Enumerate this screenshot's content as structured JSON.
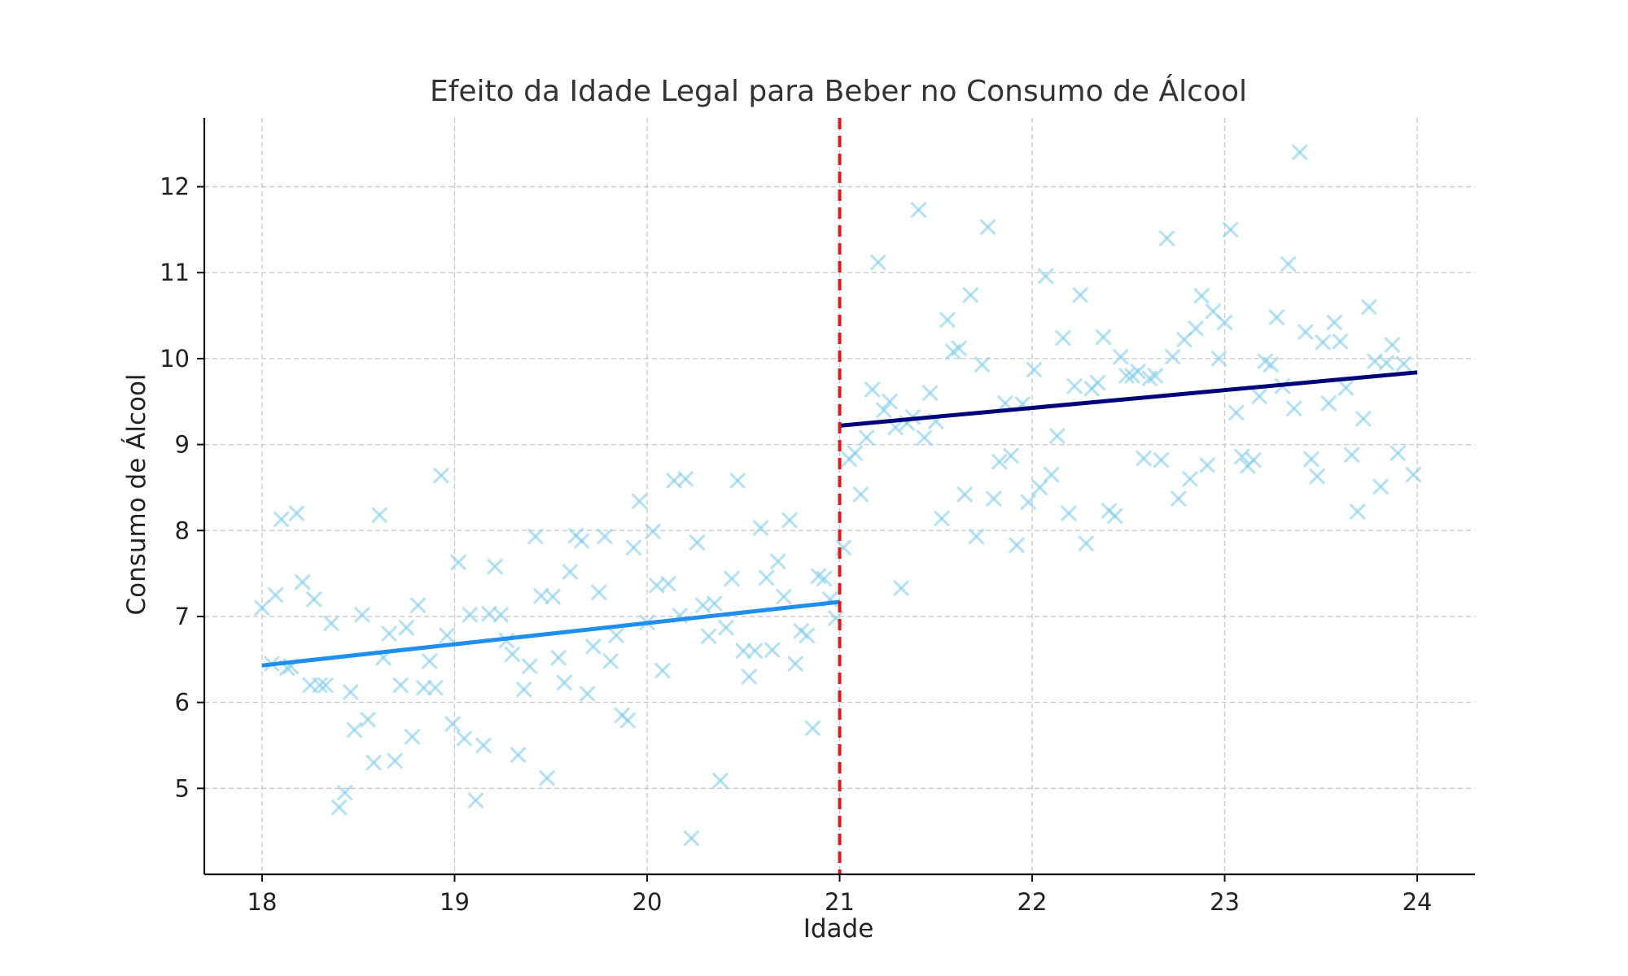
{
  "chart_data": {
    "type": "scatter",
    "title": "Efeito da Idade Legal para Beber no Consumo de Álcool",
    "xlabel": "Idade",
    "ylabel": "Consumo de Álcool",
    "xlim": [
      17.7,
      24.3
    ],
    "ylim": [
      4.0,
      12.8
    ],
    "x_ticks": [
      18,
      19,
      20,
      21,
      22,
      23,
      24
    ],
    "y_ticks": [
      5,
      6,
      7,
      8,
      9,
      10,
      11,
      12
    ],
    "grid": true,
    "cutoff": {
      "x": 21,
      "color": "#e31a1c",
      "style": "dashed"
    },
    "scatter_color": "#87ceeb",
    "series": [
      {
        "type": "scatter",
        "marker": "x",
        "points": [
          [
            18.0,
            7.1
          ],
          [
            18.05,
            6.45
          ],
          [
            18.07,
            7.25
          ],
          [
            18.1,
            8.13
          ],
          [
            18.13,
            6.4
          ],
          [
            18.15,
            6.42
          ],
          [
            18.18,
            8.2
          ],
          [
            18.21,
            7.4
          ],
          [
            18.25,
            6.2
          ],
          [
            18.27,
            7.2
          ],
          [
            18.3,
            6.2
          ],
          [
            18.33,
            6.2
          ],
          [
            18.36,
            6.92
          ],
          [
            18.4,
            4.78
          ],
          [
            18.43,
            4.95
          ],
          [
            18.46,
            6.12
          ],
          [
            18.48,
            5.68
          ],
          [
            18.52,
            7.02
          ],
          [
            18.55,
            5.8
          ],
          [
            18.58,
            5.3
          ],
          [
            18.61,
            8.18
          ],
          [
            18.63,
            6.52
          ],
          [
            18.66,
            6.8
          ],
          [
            18.69,
            5.32
          ],
          [
            18.72,
            6.2
          ],
          [
            18.75,
            6.87
          ],
          [
            18.78,
            5.6
          ],
          [
            18.81,
            7.13
          ],
          [
            18.84,
            6.17
          ],
          [
            18.87,
            6.48
          ],
          [
            18.9,
            6.17
          ],
          [
            18.93,
            8.64
          ],
          [
            18.96,
            6.78
          ],
          [
            18.99,
            5.75
          ],
          [
            19.02,
            7.63
          ],
          [
            19.05,
            5.58
          ],
          [
            19.08,
            7.02
          ],
          [
            19.11,
            4.86
          ],
          [
            19.15,
            5.5
          ],
          [
            19.18,
            7.03
          ],
          [
            19.21,
            7.58
          ],
          [
            19.24,
            7.02
          ],
          [
            19.27,
            6.72
          ],
          [
            19.3,
            6.56
          ],
          [
            19.33,
            5.39
          ],
          [
            19.36,
            6.15
          ],
          [
            19.39,
            6.42
          ],
          [
            19.42,
            7.93
          ],
          [
            19.45,
            7.24
          ],
          [
            19.48,
            5.12
          ],
          [
            19.51,
            7.23
          ],
          [
            19.54,
            6.52
          ],
          [
            19.57,
            6.23
          ],
          [
            19.6,
            7.52
          ],
          [
            19.63,
            7.94
          ],
          [
            19.66,
            7.88
          ],
          [
            19.69,
            6.1
          ],
          [
            19.72,
            6.65
          ],
          [
            19.75,
            7.28
          ],
          [
            19.78,
            7.93
          ],
          [
            19.81,
            6.48
          ],
          [
            19.84,
            6.78
          ],
          [
            19.87,
            5.85
          ],
          [
            19.9,
            5.79
          ],
          [
            19.93,
            7.8
          ],
          [
            19.96,
            8.34
          ],
          [
            20.0,
            6.93
          ],
          [
            20.03,
            7.99
          ],
          [
            20.05,
            7.36
          ],
          [
            20.08,
            6.37
          ],
          [
            20.11,
            7.38
          ],
          [
            20.14,
            8.58
          ],
          [
            20.17,
            7.01
          ],
          [
            20.2,
            8.6
          ],
          [
            20.23,
            4.42
          ],
          [
            20.26,
            7.86
          ],
          [
            20.29,
            7.13
          ],
          [
            20.32,
            6.77
          ],
          [
            20.35,
            7.15
          ],
          [
            20.38,
            5.09
          ],
          [
            20.41,
            6.87
          ],
          [
            20.44,
            7.44
          ],
          [
            20.47,
            8.58
          ],
          [
            20.5,
            6.6
          ],
          [
            20.53,
            6.3
          ],
          [
            20.56,
            6.6
          ],
          [
            20.59,
            8.03
          ],
          [
            20.62,
            7.45
          ],
          [
            20.65,
            6.61
          ],
          [
            20.68,
            7.64
          ],
          [
            20.71,
            7.23
          ],
          [
            20.74,
            8.12
          ],
          [
            20.77,
            6.45
          ],
          [
            20.8,
            6.83
          ],
          [
            20.83,
            6.78
          ],
          [
            20.86,
            5.7
          ],
          [
            20.89,
            7.47
          ],
          [
            20.92,
            7.44
          ],
          [
            20.95,
            7.2
          ],
          [
            20.98,
            6.98
          ],
          [
            21.02,
            7.8
          ],
          [
            21.05,
            8.83
          ],
          [
            21.08,
            8.9
          ],
          [
            21.11,
            8.42
          ],
          [
            21.14,
            9.08
          ],
          [
            21.17,
            9.64
          ],
          [
            21.2,
            11.12
          ],
          [
            21.23,
            9.4
          ],
          [
            21.26,
            9.5
          ],
          [
            21.29,
            9.2
          ],
          [
            21.32,
            7.33
          ],
          [
            21.35,
            9.25
          ],
          [
            21.38,
            9.32
          ],
          [
            21.41,
            11.73
          ],
          [
            21.44,
            9.08
          ],
          [
            21.47,
            9.6
          ],
          [
            21.5,
            9.27
          ],
          [
            21.53,
            8.14
          ],
          [
            21.56,
            10.45
          ],
          [
            21.59,
            10.08
          ],
          [
            21.62,
            10.12
          ],
          [
            21.65,
            8.42
          ],
          [
            21.68,
            10.74
          ],
          [
            21.71,
            7.93
          ],
          [
            21.74,
            9.93
          ],
          [
            21.77,
            11.53
          ],
          [
            21.8,
            8.37
          ],
          [
            21.83,
            8.8
          ],
          [
            21.86,
            9.48
          ],
          [
            21.89,
            8.87
          ],
          [
            21.92,
            7.83
          ],
          [
            21.95,
            9.47
          ],
          [
            21.98,
            8.33
          ],
          [
            22.01,
            9.87
          ],
          [
            22.04,
            8.5
          ],
          [
            22.07,
            10.96
          ],
          [
            22.1,
            8.65
          ],
          [
            22.13,
            9.1
          ],
          [
            22.16,
            10.24
          ],
          [
            22.19,
            8.2
          ],
          [
            22.22,
            9.68
          ],
          [
            22.25,
            10.74
          ],
          [
            22.28,
            7.85
          ],
          [
            22.31,
            9.65
          ],
          [
            22.34,
            9.72
          ],
          [
            22.37,
            10.25
          ],
          [
            22.4,
            8.23
          ],
          [
            22.43,
            8.17
          ],
          [
            22.46,
            10.02
          ],
          [
            22.49,
            9.8
          ],
          [
            22.52,
            9.8
          ],
          [
            22.55,
            9.85
          ],
          [
            22.58,
            8.84
          ],
          [
            22.61,
            9.77
          ],
          [
            22.64,
            9.8
          ],
          [
            22.67,
            8.82
          ],
          [
            22.7,
            11.4
          ],
          [
            22.73,
            10.02
          ],
          [
            22.76,
            8.37
          ],
          [
            22.79,
            10.22
          ],
          [
            22.82,
            8.6
          ],
          [
            22.85,
            10.35
          ],
          [
            22.88,
            10.73
          ],
          [
            22.91,
            8.76
          ],
          [
            22.94,
            10.55
          ],
          [
            22.97,
            10.0
          ],
          [
            23.0,
            10.42
          ],
          [
            23.03,
            11.5
          ],
          [
            23.06,
            9.37
          ],
          [
            23.09,
            8.86
          ],
          [
            23.12,
            8.75
          ],
          [
            23.15,
            8.82
          ],
          [
            23.18,
            9.56
          ],
          [
            23.21,
            9.97
          ],
          [
            23.24,
            9.93
          ],
          [
            23.27,
            10.48
          ],
          [
            23.3,
            9.68
          ],
          [
            23.33,
            11.1
          ],
          [
            23.36,
            9.42
          ],
          [
            23.39,
            12.4
          ],
          [
            23.42,
            10.31
          ],
          [
            23.45,
            8.83
          ],
          [
            23.48,
            8.63
          ],
          [
            23.51,
            10.19
          ],
          [
            23.54,
            9.48
          ],
          [
            23.57,
            10.42
          ],
          [
            23.6,
            10.2
          ],
          [
            23.63,
            9.66
          ],
          [
            23.66,
            8.88
          ],
          [
            23.69,
            8.22
          ],
          [
            23.72,
            9.3
          ],
          [
            23.75,
            10.6
          ],
          [
            23.78,
            9.97
          ],
          [
            23.81,
            8.51
          ],
          [
            23.84,
            9.95
          ],
          [
            23.87,
            10.16
          ],
          [
            23.9,
            8.9
          ],
          [
            23.93,
            9.94
          ],
          [
            23.98,
            8.65
          ]
        ]
      },
      {
        "type": "line",
        "color": "#1e8ff0",
        "points": [
          [
            18.0,
            6.43
          ],
          [
            21.0,
            7.17
          ]
        ]
      },
      {
        "type": "line",
        "color": "#00007a",
        "points": [
          [
            21.0,
            9.22
          ],
          [
            24.0,
            9.84
          ]
        ]
      }
    ]
  }
}
